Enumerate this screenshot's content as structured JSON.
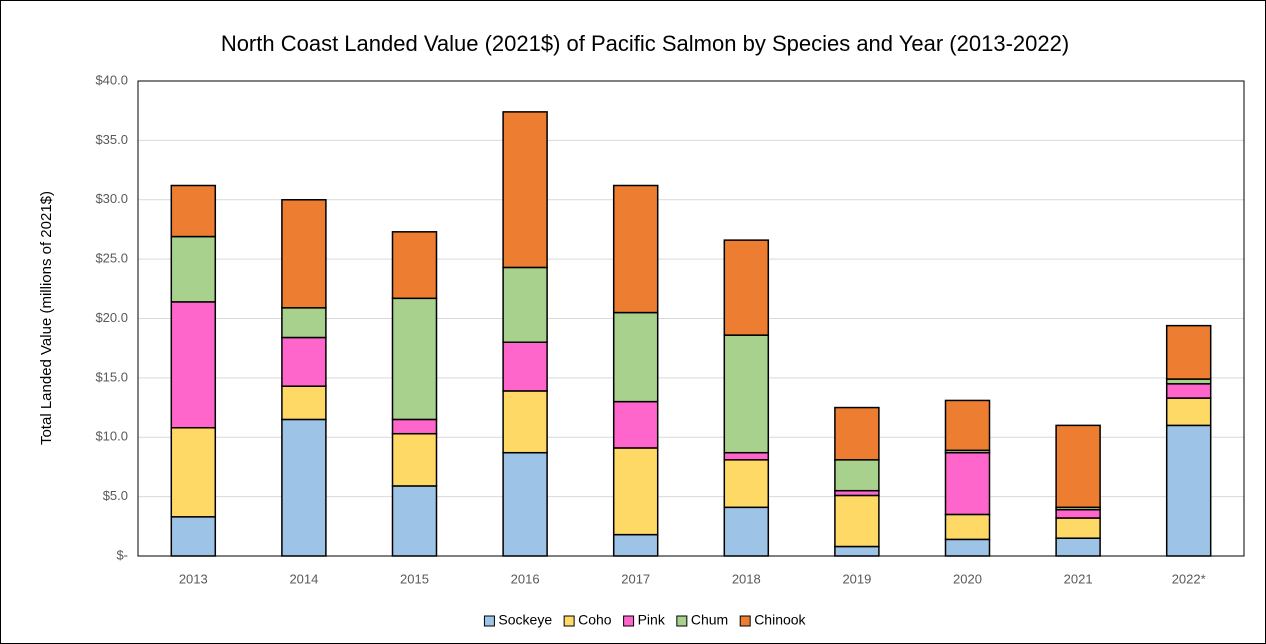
{
  "chart_data": {
    "type": "stacked_bar",
    "title": "North Coast Landed Value (2021$) of Pacific Salmon by Species and Year (2013-2022)",
    "y_label": "Total Landed Value (millions of 2021$)",
    "categories": [
      "2013",
      "2014",
      "2015",
      "2016",
      "2017",
      "2018",
      "2019",
      "2020",
      "2021",
      "2022*"
    ],
    "series": [
      {
        "name": "Sockeye",
        "color": "#9dc3e6",
        "values": [
          3.3,
          11.5,
          5.9,
          8.7,
          1.8,
          4.1,
          0.8,
          1.4,
          1.5,
          11.0
        ]
      },
      {
        "name": "Coho",
        "color": "#ffd966",
        "values": [
          7.5,
          2.8,
          4.4,
          5.2,
          7.3,
          4.0,
          4.3,
          2.1,
          1.7,
          2.3
        ]
      },
      {
        "name": "Pink",
        "color": "#ff66cc",
        "values": [
          10.6,
          4.1,
          1.2,
          4.1,
          3.9,
          0.6,
          0.4,
          5.2,
          0.7,
          1.2
        ]
      },
      {
        "name": "Chum",
        "color": "#a9d18e",
        "values": [
          5.5,
          2.5,
          10.2,
          6.3,
          7.5,
          9.9,
          2.6,
          0.2,
          0.2,
          0.4
        ]
      },
      {
        "name": "Chinook",
        "color": "#ed7d31",
        "values": [
          4.3,
          9.1,
          5.6,
          13.1,
          10.7,
          8.0,
          4.4,
          4.2,
          6.9,
          4.5
        ]
      }
    ],
    "ylim": [
      0,
      40
    ],
    "yticks": [
      {
        "value": 0,
        "label": "$-"
      },
      {
        "value": 5,
        "label": "$5.0"
      },
      {
        "value": 10,
        "label": "$10.0"
      },
      {
        "value": 15,
        "label": "$15.0"
      },
      {
        "value": 20,
        "label": "$20.0"
      },
      {
        "value": 25,
        "label": "$25.0"
      },
      {
        "value": 30,
        "label": "$30.0"
      },
      {
        "value": 35,
        "label": "$35.0"
      },
      {
        "value": 40,
        "label": "$40.0"
      }
    ],
    "grid": true,
    "legend": "bottom"
  }
}
